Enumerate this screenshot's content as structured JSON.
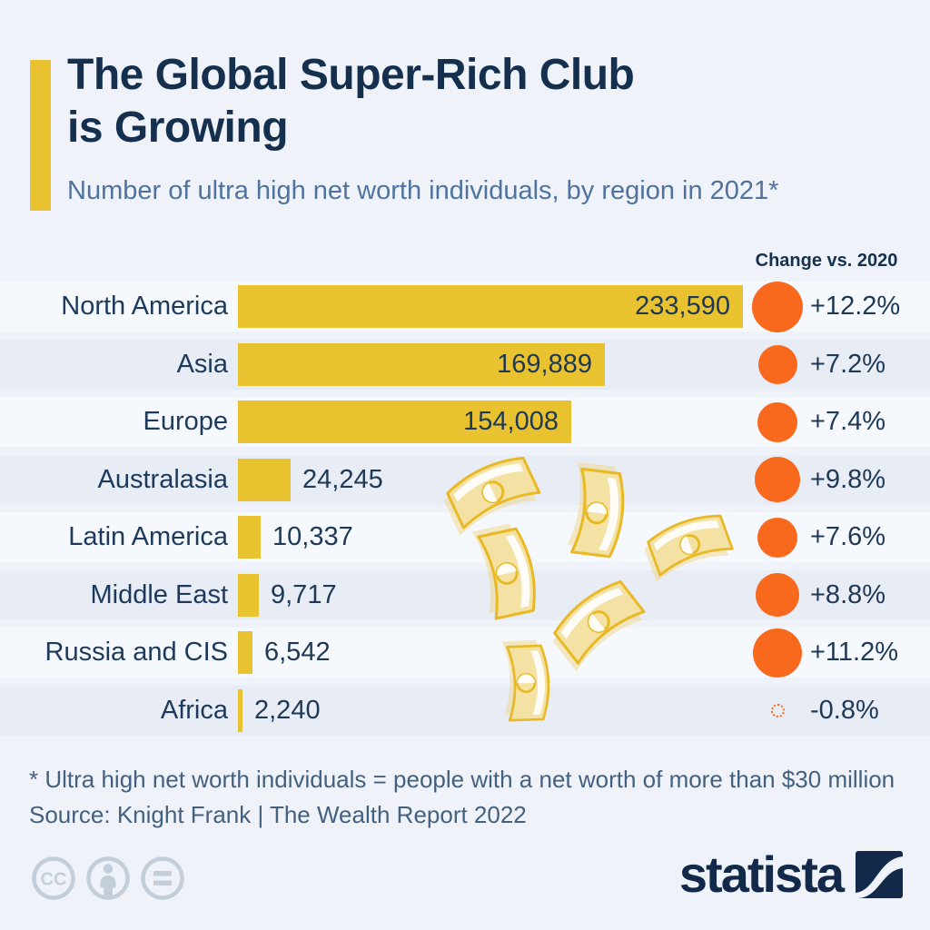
{
  "header": {
    "title_line1": "The Global Super-Rich Club",
    "title_line2": "is Growing",
    "subtitle": "Number of ultra high net worth individuals, by region in 2021*"
  },
  "chart_data": {
    "type": "bar",
    "orientation": "horizontal",
    "title": "Number of ultra high net worth individuals, by region in 2021",
    "change_column_header": "Change vs. 2020",
    "categories": [
      "North America",
      "Asia",
      "Europe",
      "Australasia",
      "Latin America",
      "Middle East",
      "Russia and CIS",
      "Africa"
    ],
    "values": [
      233590,
      169889,
      154008,
      24245,
      10337,
      9717,
      6542,
      2240
    ],
    "value_labels": [
      "233,590",
      "169,889",
      "154,008",
      "24,245",
      "10,337",
      "9,717",
      "6,542",
      "2,240"
    ],
    "change_vs_2020_pct": [
      12.2,
      7.2,
      7.4,
      9.8,
      7.6,
      8.8,
      11.2,
      -0.8
    ],
    "change_labels": [
      "+12.2%",
      "+7.2%",
      "+7.4%",
      "+9.8%",
      "+7.6%",
      "+8.8%",
      "+11.2%",
      "-0.8%"
    ],
    "xlim": [
      0,
      233590
    ],
    "legend": "none",
    "grid": "off",
    "bar_color": "#e9c32f",
    "bubble_color": "#f8691d"
  },
  "decorations": {
    "icon": "banknote-icon",
    "count": 6
  },
  "footer": {
    "footnote": "* Ultra high net worth individuals = people with a net worth of more than $30 million",
    "source": "Source: Knight Frank | The Wealth Report 2022"
  },
  "branding": {
    "logo_text": "statista",
    "license_icons": [
      "cc-icon",
      "attribution-person-icon",
      "equals-icon"
    ]
  },
  "colors": {
    "background": "#eff3f9",
    "row_light": "#f5f8fc",
    "row_dark": "#e7ecf5",
    "accent_yellow": "#e9c32f",
    "bubble_orange": "#f8691d",
    "title_navy": "#15304e",
    "subtitle_blue": "#4f739e"
  }
}
